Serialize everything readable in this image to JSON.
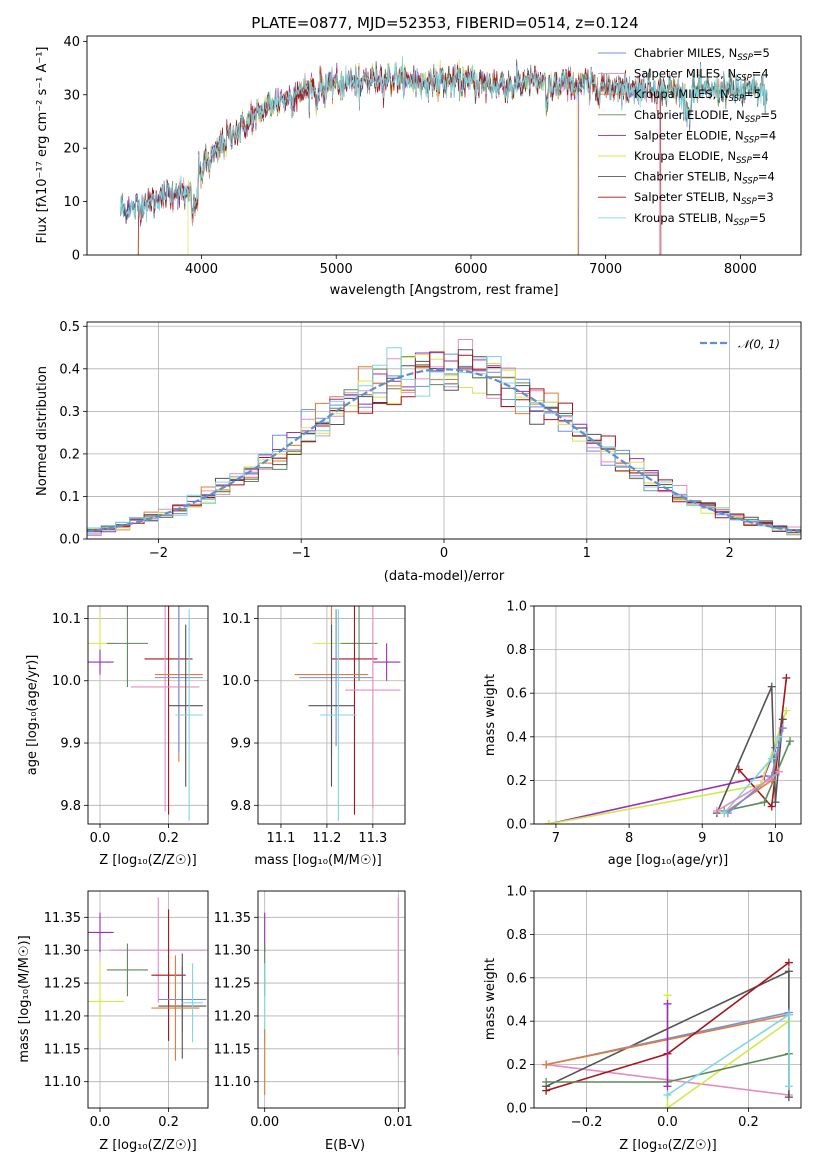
{
  "colors": {
    "Chabrier MILES": "#6f8fe6",
    "Salpeter MILES": "#e88cc0",
    "Kroupa MILES": "#e07c35",
    "Chabrier ELODIE": "#5c8a5c",
    "Salpeter ELODIE": "#9a2fb8",
    "Kroupa ELODIE": "#d5e84a",
    "Chabrier STELIB": "#545454",
    "Salpeter STELIB": "#a8141a",
    "Kroupa STELIB": "#7fd6e0",
    "normal_fit": "#5b8fd6"
  },
  "chart_data": [
    {
      "id": "spectrum",
      "type": "line",
      "title": "PLATE=0877, MJD=52353, FIBERID=0514, z=0.124",
      "xlabel": "wavelength [Angstrom, rest frame]",
      "ylabel": "Flux [fλ10⁻¹⁷ erg cm⁻² s⁻¹ A⁻¹]",
      "xlim": [
        3150,
        8450
      ],
      "ylim": [
        0,
        41
      ],
      "xticks": [
        4000,
        5000,
        6000,
        7000,
        8000
      ],
      "yticks": [
        0,
        10,
        20,
        30,
        40
      ],
      "legend": "right",
      "legend_entries": [
        {
          "series": "Chabrier MILES",
          "text": "Chabrier MILES, N",
          "sub": "SSP",
          "suffix": "=5"
        },
        {
          "series": "Salpeter MILES",
          "text": "Salpeter MILES, N",
          "sub": "SSP",
          "suffix": "=4"
        },
        {
          "series": "Kroupa MILES",
          "text": "Kroupa MILES, N",
          "sub": "SSP",
          "suffix": "=5"
        },
        {
          "series": "Chabrier ELODIE",
          "text": "Chabrier ELODIE, N",
          "sub": "SSP",
          "suffix": "=5"
        },
        {
          "series": "Salpeter ELODIE",
          "text": "Salpeter ELODIE, N",
          "sub": "SSP",
          "suffix": "=4"
        },
        {
          "series": "Kroupa ELODIE",
          "text": "Kroupa ELODIE, N",
          "sub": "SSP",
          "suffix": "=4"
        },
        {
          "series": "Chabrier STELIB",
          "text": "Chabrier STELIB, N",
          "sub": "SSP",
          "suffix": "=4"
        },
        {
          "series": "Salpeter STELIB",
          "text": "Salpeter STELIB, N",
          "sub": "SSP",
          "suffix": "=3"
        },
        {
          "series": "Kroupa STELIB",
          "text": "Kroupa STELIB, N",
          "sub": "SSP",
          "suffix": "=5"
        }
      ],
      "continuum": [
        [
          3400,
          8.5
        ],
        [
          3600,
          9.5
        ],
        [
          3700,
          11
        ],
        [
          3800,
          12
        ],
        [
          3900,
          11
        ],
        [
          4000,
          16
        ],
        [
          4100,
          19
        ],
        [
          4200,
          22
        ],
        [
          4300,
          24
        ],
        [
          4400,
          26
        ],
        [
          4500,
          28
        ],
        [
          4600,
          29
        ],
        [
          4700,
          30
        ],
        [
          4800,
          31
        ],
        [
          4900,
          31.5
        ],
        [
          5000,
          32
        ],
        [
          5100,
          32.5
        ],
        [
          5200,
          32.5
        ],
        [
          5300,
          33
        ],
        [
          5400,
          33
        ],
        [
          5500,
          33
        ],
        [
          5600,
          32.5
        ],
        [
          5700,
          32.5
        ],
        [
          5800,
          32.5
        ],
        [
          5900,
          32.5
        ],
        [
          6000,
          32.5
        ],
        [
          6100,
          32
        ],
        [
          6200,
          32
        ],
        [
          6300,
          31.5
        ],
        [
          6400,
          32.5
        ],
        [
          6500,
          32.5
        ],
        [
          6600,
          31.5
        ],
        [
          6700,
          32
        ],
        [
          6800,
          32
        ],
        [
          6900,
          31.5
        ],
        [
          7000,
          31.5
        ],
        [
          7100,
          31.5
        ],
        [
          7200,
          31
        ],
        [
          7300,
          31.5
        ],
        [
          7400,
          31
        ],
        [
          7500,
          31
        ],
        [
          7600,
          30
        ],
        [
          7700,
          31
        ],
        [
          7800,
          31
        ],
        [
          7900,
          31
        ],
        [
          8000,
          30.5
        ],
        [
          8100,
          31
        ],
        [
          8200,
          30
        ]
      ],
      "series_ranges": [
        {
          "name": "Chabrier MILES",
          "from": 3400,
          "to": 8200
        },
        {
          "name": "Salpeter MILES",
          "from": 3400,
          "to": 7400
        },
        {
          "name": "Kroupa MILES",
          "from": 3530,
          "to": 8200
        },
        {
          "name": "Chabrier ELODIE",
          "from": 3400,
          "to": 8200
        },
        {
          "name": "Salpeter ELODIE",
          "from": 3400,
          "to": 6800
        },
        {
          "name": "Kroupa ELODIE",
          "from": 3900,
          "to": 6790
        },
        {
          "name": "Chabrier STELIB",
          "from": 3400,
          "to": 8200
        },
        {
          "name": "Salpeter STELIB",
          "from": 3530,
          "to": 7410
        },
        {
          "name": "Kroupa STELIB",
          "from": 3400,
          "to": 8200
        }
      ]
    },
    {
      "id": "residuals",
      "type": "bar",
      "xlabel": "(data-model)/error",
      "ylabel": "Normed distribution",
      "xlim": [
        -2.5,
        2.5
      ],
      "ylim": [
        0,
        0.51
      ],
      "xticks": [
        -2,
        -1,
        0,
        1,
        2
      ],
      "yticks": [
        0.0,
        0.1,
        0.2,
        0.3,
        0.4,
        0.5
      ],
      "grid": true,
      "legend": "top-right",
      "fit_label": "𝒩(0, 1)",
      "bins": [
        -2.5,
        -2.4,
        -2.3,
        -2.2,
        -2.1,
        -2.0,
        -1.9,
        -1.8,
        -1.7,
        -1.6,
        -1.5,
        -1.4,
        -1.3,
        -1.2,
        -1.1,
        -1.0,
        -0.9,
        -0.8,
        -0.7,
        -0.6,
        -0.5,
        -0.4,
        -0.3,
        -0.2,
        -0.1,
        0.0,
        0.1,
        0.2,
        0.3,
        0.4,
        0.5,
        0.6,
        0.7,
        0.8,
        0.9,
        1.0,
        1.1,
        1.2,
        1.3,
        1.4,
        1.5,
        1.6,
        1.7,
        1.8,
        1.9,
        2.0,
        2.1,
        2.2,
        2.3,
        2.4
      ],
      "histogram_series": [
        "Chabrier MILES",
        "Salpeter MILES",
        "Kroupa MILES",
        "Chabrier ELODIE",
        "Salpeter ELODIE",
        "Kroupa ELODIE",
        "Chabrier STELIB",
        "Salpeter STELIB",
        "Kroupa STELIB"
      ]
    },
    {
      "id": "age_vs_Z",
      "type": "scatter",
      "xlabel": "Z [log₁₀(Z/Z☉)]",
      "ylabel": "age  [log₁₀(age/yr)]",
      "xlim": [
        -0.035,
        0.315
      ],
      "ylim": [
        9.77,
        10.12
      ],
      "xticks": [
        0.0,
        0.2
      ],
      "yticks": [
        9.8,
        9.9,
        10.0,
        10.1
      ],
      "grid": true,
      "points": [
        {
          "series": "Kroupa ELODIE",
          "x": 0.0,
          "y": 10.06,
          "xerr": 0.05,
          "yerr": 0.05
        },
        {
          "series": "Salpeter ELODIE",
          "x": 0.0,
          "y": 10.03,
          "xerr": 0.04,
          "yerr": 0.02
        },
        {
          "series": "Chabrier ELODIE",
          "x": 0.08,
          "y": 10.06,
          "xerr": 0.06,
          "yerr": 0.07
        },
        {
          "series": "Salpeter STELIB",
          "x": 0.2,
          "y": 10.035,
          "xerr": 0.07,
          "yerr": 0.25
        },
        {
          "series": "Kroupa MILES",
          "x": 0.23,
          "y": 10.01,
          "xerr": 0.07,
          "yerr": 0.14
        },
        {
          "series": "Chabrier MILES",
          "x": 0.23,
          "y": 10.005,
          "xerr": 0.07,
          "yerr": 0.12
        },
        {
          "series": "Salpeter MILES",
          "x": 0.19,
          "y": 9.99,
          "xerr": 0.1,
          "yerr": 0.2
        },
        {
          "series": "Chabrier STELIB",
          "x": 0.25,
          "y": 9.96,
          "xerr": 0.05,
          "yerr": 0.13
        },
        {
          "series": "Kroupa STELIB",
          "x": 0.26,
          "y": 9.945,
          "xerr": 0.04,
          "yerr": 0.17
        }
      ]
    },
    {
      "id": "age_vs_mass",
      "type": "scatter",
      "xlabel": "mass [log₁₀(M/M☉)]",
      "xlim": [
        11.05,
        11.37
      ],
      "ylim": [
        9.77,
        10.12
      ],
      "xticks": [
        11.1,
        11.2,
        11.3
      ],
      "yticks": [
        9.8,
        9.9,
        10.0,
        10.1
      ],
      "grid": true,
      "points": [
        {
          "series": "Kroupa ELODIE",
          "x": 11.22,
          "y": 10.06,
          "xerr": 0.05,
          "yerr": 0.05
        },
        {
          "series": "Salpeter ELODIE",
          "x": 11.33,
          "y": 10.03,
          "xerr": 0.03,
          "yerr": 0.03
        },
        {
          "series": "Chabrier ELODIE",
          "x": 11.27,
          "y": 10.06,
          "xerr": 0.04,
          "yerr": 0.06
        },
        {
          "series": "Salpeter STELIB",
          "x": 11.26,
          "y": 10.035,
          "xerr": 0.05,
          "yerr": 0.25
        },
        {
          "series": "Kroupa MILES",
          "x": 11.21,
          "y": 10.01,
          "xerr": 0.08,
          "yerr": 0.13
        },
        {
          "series": "Chabrier MILES",
          "x": 11.22,
          "y": 10.005,
          "xerr": 0.08,
          "yerr": 0.11
        },
        {
          "series": "Salpeter MILES",
          "x": 11.3,
          "y": 9.985,
          "xerr": 0.06,
          "yerr": 0.19
        },
        {
          "series": "Chabrier STELIB",
          "x": 11.21,
          "y": 9.96,
          "xerr": 0.05,
          "yerr": 0.13
        },
        {
          "series": "Kroupa STELIB",
          "x": 11.225,
          "y": 9.945,
          "xerr": 0.04,
          "yerr": 0.17
        }
      ]
    },
    {
      "id": "weight_vs_age",
      "type": "line",
      "xlabel": "age  [log₁₀(age/yr)]",
      "ylabel": "mass weight",
      "xlim": [
        6.7,
        10.35
      ],
      "ylim": [
        0,
        1.0
      ],
      "xticks": [
        7,
        8,
        9,
        10
      ],
      "yticks": [
        0.0,
        0.2,
        0.4,
        0.6,
        0.8,
        1.0
      ],
      "grid": true,
      "series": [
        {
          "name": "Salpeter ELODIE",
          "x": [
            6.9,
            9.85,
            10.0
          ],
          "y": [
            0.0,
            0.22,
            0.35
          ]
        },
        {
          "name": "Kroupa ELODIE",
          "x": [
            6.9,
            9.8,
            10.15
          ],
          "y": [
            0.0,
            0.18,
            0.52
          ]
        },
        {
          "name": "Salpeter STELIB",
          "x": [
            9.5,
            9.95,
            10.15
          ],
          "y": [
            0.25,
            0.08,
            0.67
          ]
        },
        {
          "name": "Chabrier STELIB",
          "x": [
            9.2,
            9.95,
            10.0,
            10.1
          ],
          "y": [
            0.05,
            0.63,
            0.1,
            0.48
          ]
        },
        {
          "name": "Chabrier ELODIE",
          "x": [
            9.3,
            9.85,
            10.2
          ],
          "y": [
            0.06,
            0.1,
            0.38
          ]
        },
        {
          "name": "Kroupa MILES",
          "x": [
            9.3,
            9.95,
            10.1
          ],
          "y": [
            0.05,
            0.2,
            0.44
          ]
        },
        {
          "name": "Chabrier MILES",
          "x": [
            9.35,
            9.95,
            10.1
          ],
          "y": [
            0.05,
            0.22,
            0.44
          ]
        },
        {
          "name": "Kroupa STELIB",
          "x": [
            9.3,
            9.95,
            10.05
          ],
          "y": [
            0.05,
            0.3,
            0.4
          ]
        },
        {
          "name": "Salpeter MILES",
          "x": [
            9.2,
            9.9,
            10.05
          ],
          "y": [
            0.06,
            0.2,
            0.24
          ]
        }
      ]
    },
    {
      "id": "mass_vs_Z",
      "type": "scatter",
      "xlabel": "Z [log₁₀(Z/Z☉)]",
      "ylabel": "mass [log₁₀(M/M☉)]",
      "xlim": [
        -0.035,
        0.315
      ],
      "ylim": [
        11.06,
        11.39
      ],
      "xticks": [
        0.0,
        0.2
      ],
      "yticks": [
        11.1,
        11.15,
        11.2,
        11.25,
        11.3,
        11.35
      ],
      "grid": true,
      "points": [
        {
          "series": "Salpeter ELODIE",
          "x": 0.0,
          "y": 11.327,
          "xerr": 0.04,
          "yerr": 0.03
        },
        {
          "series": "Salpeter MILES",
          "x": 0.17,
          "y": 11.3,
          "xerr": 0.14,
          "yerr": 0.08
        },
        {
          "series": "Chabrier ELODIE",
          "x": 0.08,
          "y": 11.27,
          "xerr": 0.06,
          "yerr": 0.04
        },
        {
          "series": "Salpeter STELIB",
          "x": 0.2,
          "y": 11.262,
          "xerr": 0.05,
          "yerr": 0.1
        },
        {
          "series": "Chabrier MILES",
          "x": 0.24,
          "y": 11.225,
          "xerr": 0.07,
          "yerr": 0.05
        },
        {
          "series": "Kroupa ELODIE",
          "x": 0.0,
          "y": 11.222,
          "xerr": 0.07,
          "yerr": 0.06
        },
        {
          "series": "Chabrier STELIB",
          "x": 0.24,
          "y": 11.215,
          "xerr": 0.07,
          "yerr": 0.08
        },
        {
          "series": "Kroupa MILES",
          "x": 0.22,
          "y": 11.212,
          "xerr": 0.07,
          "yerr": 0.08
        },
        {
          "series": "Kroupa STELIB",
          "x": 0.27,
          "y": 11.22,
          "xerr": 0.03,
          "yerr": 0.06
        }
      ]
    },
    {
      "id": "mass_vs_ebv",
      "type": "scatter",
      "xlabel": "E(B-V)",
      "xlim": [
        -0.0005,
        0.0105
      ],
      "ylim": [
        11.06,
        11.39
      ],
      "xticks": [
        0.0,
        0.01
      ],
      "yticks": [
        11.1,
        11.15,
        11.2,
        11.25,
        11.3,
        11.35
      ],
      "grid": true,
      "points": [
        {
          "series": "Salpeter ELODIE",
          "x": 0.0,
          "y": 11.327,
          "xerr": 0,
          "yerr": 0.03
        },
        {
          "series": "Salpeter MILES",
          "x": 0.01,
          "y": 11.26,
          "xerr": 0,
          "yerr": 0.12
        },
        {
          "series": "Chabrier ELODIE",
          "x": 0.0,
          "y": 11.27,
          "xerr": 0,
          "yerr": 0.04
        },
        {
          "series": "Kroupa STELIB",
          "x": 0.0,
          "y": 11.22,
          "xerr": 0,
          "yerr": 0.06
        },
        {
          "series": "Kroupa MILES",
          "x": 0.0,
          "y": 11.13,
          "xerr": 0,
          "yerr": 0.05
        }
      ]
    },
    {
      "id": "weight_vs_Z",
      "type": "line",
      "xlabel": "Z [log₁₀(Z/Z☉)]",
      "ylabel": "mass weight",
      "xlim": [
        -0.33,
        0.33
      ],
      "ylim": [
        0,
        1.0
      ],
      "xticks": [
        -0.2,
        0.0,
        0.2
      ],
      "yticks": [
        0.0,
        0.2,
        0.4,
        0.6,
        0.8,
        1.0
      ],
      "grid": true,
      "series": [
        {
          "name": "Salpeter MILES",
          "x": [
            -0.3,
            0.3
          ],
          "y": [
            0.2,
            0.06
          ]
        },
        {
          "name": "Kroupa ELODIE",
          "x": [
            0.0,
            0.0,
            0.3
          ],
          "y": [
            0.52,
            0.0,
            0.4
          ]
        },
        {
          "name": "Chabrier STELIB",
          "x": [
            -0.3,
            0.3,
            0.3
          ],
          "y": [
            0.1,
            0.63,
            0.05
          ]
        },
        {
          "name": "Chabrier MILES",
          "x": [
            -0.3,
            0.3
          ],
          "y": [
            0.2,
            0.44
          ]
        },
        {
          "name": "Kroupa MILES",
          "x": [
            -0.3,
            0.3
          ],
          "y": [
            0.2,
            0.43
          ]
        },
        {
          "name": "Salpeter STELIB",
          "x": [
            -0.3,
            0.0,
            0.3
          ],
          "y": [
            0.08,
            0.25,
            0.67
          ]
        },
        {
          "name": "Chabrier ELODIE",
          "x": [
            -0.3,
            0.0,
            0.3
          ],
          "y": [
            0.12,
            0.12,
            0.25
          ]
        },
        {
          "name": "Kroupa STELIB",
          "x": [
            0.0,
            0.3,
            0.3
          ],
          "y": [
            0.06,
            0.43,
            0.1
          ]
        },
        {
          "name": "Salpeter ELODIE",
          "x": [
            0.0,
            0.0
          ],
          "y": [
            0.48,
            0.1
          ]
        }
      ]
    }
  ]
}
